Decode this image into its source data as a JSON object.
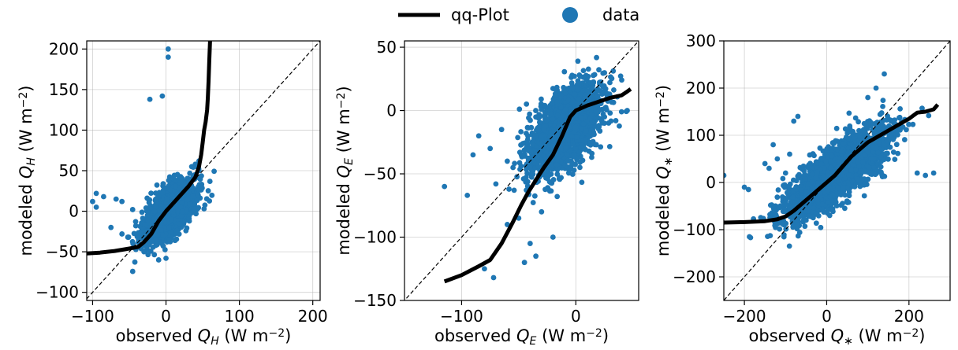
{
  "legend": {
    "items": [
      {
        "label": "qq-Plot",
        "kind": "line",
        "color": "#000000"
      },
      {
        "label": "data",
        "kind": "marker",
        "color": "#1f77b4"
      }
    ]
  },
  "colors": {
    "scatter": "#1f77b4",
    "qq_line": "#000000",
    "grid": "#b0b0b0",
    "diagonal": "#000000"
  },
  "chart_data": [
    {
      "type": "scatter",
      "xlabel_parts": [
        "observed ",
        "Q",
        "H",
        " (W m",
        "−2",
        ")"
      ],
      "ylabel_parts": [
        "modeled ",
        "Q",
        "H",
        " (W m",
        "−2",
        ")"
      ],
      "xlim": [
        -108,
        210
      ],
      "ylim": [
        -110,
        210
      ],
      "xticks": [
        -100,
        0,
        100,
        200
      ],
      "xtick_labels": [
        "−100",
        "0",
        "100",
        "200"
      ],
      "yticks": [
        -100,
        -50,
        0,
        50,
        100,
        150,
        200
      ],
      "ytick_labels": [
        "−100",
        "−50",
        "0",
        "50",
        "100",
        "150",
        "200"
      ],
      "grid": true,
      "diagonal": "1:1 dashed",
      "cloud": {
        "center": [
          5,
          0
        ],
        "spread": [
          16,
          17
        ],
        "corr": 0.62,
        "n": 2600
      },
      "outliers": [
        [
          3,
          200
        ],
        [
          3,
          190
        ],
        [
          -22,
          138
        ],
        [
          -5,
          142
        ],
        [
          -95,
          22
        ],
        [
          -100,
          12
        ],
        [
          -85,
          18
        ],
        [
          -68,
          15
        ],
        [
          -60,
          12
        ],
        [
          -95,
          5
        ],
        [
          -75,
          -20
        ],
        [
          -60,
          -28
        ],
        [
          -52,
          -32
        ],
        [
          -45,
          -40
        ],
        [
          -10,
          -60
        ],
        [
          0,
          -58
        ],
        [
          -30,
          -50
        ],
        [
          45,
          62
        ],
        [
          40,
          58
        ],
        [
          35,
          55
        ]
      ],
      "qq_line": [
        [
          -108,
          -52
        ],
        [
          -90,
          -51
        ],
        [
          -70,
          -49
        ],
        [
          -50,
          -46
        ],
        [
          -38,
          -44
        ],
        [
          -30,
          -38
        ],
        [
          -20,
          -28
        ],
        [
          -10,
          -12
        ],
        [
          0,
          0
        ],
        [
          10,
          10
        ],
        [
          20,
          20
        ],
        [
          30,
          30
        ],
        [
          40,
          42
        ],
        [
          45,
          55
        ],
        [
          48,
          70
        ],
        [
          50,
          85
        ],
        [
          52,
          100
        ],
        [
          54,
          110
        ],
        [
          56,
          125
        ],
        [
          57,
          140
        ],
        [
          58,
          160
        ],
        [
          59,
          185
        ],
        [
          60,
          210
        ]
      ]
    },
    {
      "type": "scatter",
      "xlabel_parts": [
        "observed ",
        "Q",
        "E",
        " (W m",
        "−2",
        ")"
      ],
      "ylabel_parts": [
        "modeled ",
        "Q",
        "E",
        " (W m",
        "−2",
        ")"
      ],
      "xlim": [
        -150,
        55
      ],
      "ylim": [
        -150,
        55
      ],
      "xticks": [
        -100,
        0
      ],
      "xtick_labels": [
        "−100",
        "0"
      ],
      "yticks": [
        -150,
        -100,
        -50,
        0,
        50
      ],
      "ytick_labels": [
        "−150",
        "−100",
        "−50",
        "0",
        "50"
      ],
      "grid": true,
      "diagonal": "1:1 dashed",
      "cloud": {
        "center": [
          -10,
          -15
        ],
        "spread": [
          15,
          17
        ],
        "corr": 0.55,
        "n": 2400
      },
      "outliers": [
        [
          -115,
          -60
        ],
        [
          -75,
          -30
        ],
        [
          -95,
          -67
        ],
        [
          -70,
          -58
        ],
        [
          -80,
          -125
        ],
        [
          -72,
          -132
        ],
        [
          -45,
          -120
        ],
        [
          -35,
          -115
        ],
        [
          -20,
          -100
        ],
        [
          -40,
          -105
        ],
        [
          -60,
          -90
        ],
        [
          -50,
          -85
        ],
        [
          -30,
          -80
        ],
        [
          20,
          5
        ],
        [
          30,
          -2
        ],
        [
          40,
          -1
        ],
        [
          45,
          0
        ],
        [
          25,
          -10
        ],
        [
          35,
          -8
        ],
        [
          -85,
          -20
        ],
        [
          -65,
          -15
        ],
        [
          -55,
          -45
        ],
        [
          -60,
          -40
        ],
        [
          -90,
          -35
        ]
      ],
      "qq_line": [
        [
          -115,
          -135
        ],
        [
          -100,
          -130
        ],
        [
          -85,
          -123
        ],
        [
          -75,
          -118
        ],
        [
          -65,
          -105
        ],
        [
          -55,
          -88
        ],
        [
          -48,
          -75
        ],
        [
          -42,
          -65
        ],
        [
          -35,
          -55
        ],
        [
          -28,
          -45
        ],
        [
          -20,
          -35
        ],
        [
          -12,
          -20
        ],
        [
          -5,
          -5
        ],
        [
          0,
          0
        ],
        [
          10,
          4
        ],
        [
          20,
          7
        ],
        [
          30,
          10
        ],
        [
          40,
          12
        ],
        [
          45,
          15
        ],
        [
          48,
          17
        ]
      ]
    },
    {
      "type": "scatter",
      "xlabel_parts": [
        "observed ",
        "Q",
        "∗",
        " (W m",
        "−2",
        ")"
      ],
      "ylabel_parts": [
        "modeled ",
        "Q",
        "∗",
        " (W m",
        "−2",
        ")"
      ],
      "xlim": [
        -250,
        300
      ],
      "ylim": [
        -250,
        300
      ],
      "xticks": [
        -200,
        0,
        200
      ],
      "xtick_labels": [
        "−200",
        "0",
        "200"
      ],
      "yticks": [
        -200,
        -100,
        0,
        100,
        200,
        300
      ],
      "ytick_labels": [
        "−200",
        "−100",
        "0",
        "100",
        "200",
        "300"
      ],
      "grid": true,
      "diagonal": "1:1 dashed",
      "cloud": {
        "center": [
          25,
          20
        ],
        "spread": [
          60,
          45
        ],
        "corr": 0.78,
        "n": 2700
      },
      "outliers": [
        [
          -250,
          15
        ],
        [
          -200,
          -10
        ],
        [
          -190,
          -15
        ],
        [
          -150,
          40
        ],
        [
          -130,
          80
        ],
        [
          -120,
          50
        ],
        [
          -140,
          30
        ],
        [
          -100,
          20
        ],
        [
          -90,
          60
        ],
        [
          -80,
          130
        ],
        [
          -70,
          140
        ],
        [
          100,
          180
        ],
        [
          120,
          200
        ],
        [
          140,
          230
        ],
        [
          220,
          20
        ],
        [
          240,
          15
        ],
        [
          260,
          20
        ],
        [
          180,
          120
        ],
        [
          160,
          110
        ],
        [
          -60,
          -70
        ],
        [
          -50,
          -80
        ],
        [
          -45,
          -60
        ]
      ],
      "qq_line": [
        [
          -250,
          -85
        ],
        [
          -200,
          -84
        ],
        [
          -150,
          -82
        ],
        [
          -120,
          -78
        ],
        [
          -100,
          -72
        ],
        [
          -80,
          -60
        ],
        [
          -60,
          -45
        ],
        [
          -40,
          -30
        ],
        [
          -20,
          -15
        ],
        [
          0,
          0
        ],
        [
          20,
          15
        ],
        [
          40,
          35
        ],
        [
          60,
          55
        ],
        [
          80,
          70
        ],
        [
          100,
          85
        ],
        [
          120,
          95
        ],
        [
          150,
          110
        ],
        [
          180,
          125
        ],
        [
          200,
          135
        ],
        [
          220,
          148
        ],
        [
          240,
          150
        ],
        [
          260,
          155
        ],
        [
          270,
          165
        ]
      ]
    }
  ]
}
